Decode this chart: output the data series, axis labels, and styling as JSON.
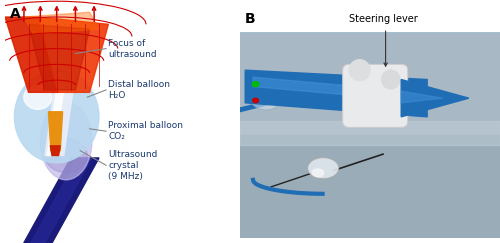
{
  "fig_width": 5.0,
  "fig_height": 2.43,
  "dpi": 100,
  "background_color": "#ffffff",
  "panel_A_label": "A",
  "panel_B_label": "B",
  "label_fontsize": 10,
  "label_fontweight": "bold",
  "ann_fontsize": 6.5,
  "ann_color": "#1a3a6e",
  "ann_line_color": "#888888",
  "steering_lever_text": "Steering lever",
  "steering_lever_fontsize": 7.0,
  "photo_border_color": "#90b8cc",
  "photo_border_lw": 1.2,
  "cone_color": "#dd2200",
  "cone_color2": "#cc1100",
  "balloon_dist_color": "#b8d8f0",
  "balloon_prox_color": "#c0b8e8",
  "shaft_color": "#1a1a7a",
  "crystal_color": "#e89010",
  "white_cyl_color": "#e8eef8",
  "ray_color": "#cc0000"
}
